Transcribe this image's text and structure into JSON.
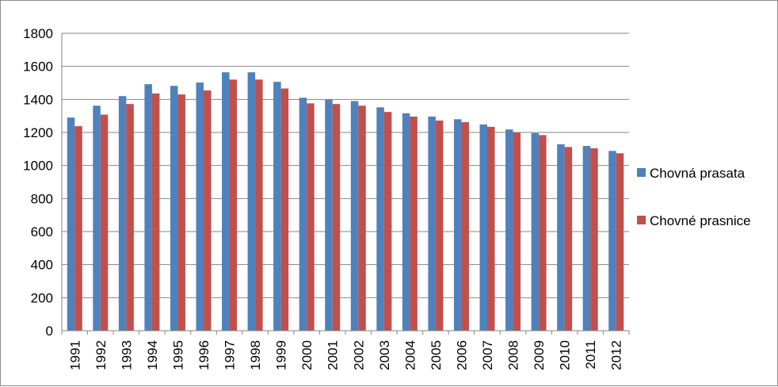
{
  "chart_data": {
    "type": "bar",
    "categories": [
      "1991",
      "1992",
      "1993",
      "1994",
      "1995",
      "1996",
      "1997",
      "1998",
      "1999",
      "2000",
      "2001",
      "2002",
      "2003",
      "2004",
      "2005",
      "2006",
      "2007",
      "2008",
      "2009",
      "2010",
      "2011",
      "2012"
    ],
    "series": [
      {
        "name": "Chovná prasata",
        "color": "#4f81bd",
        "values": [
          1290,
          1362,
          1420,
          1492,
          1482,
          1502,
          1564,
          1564,
          1506,
          1410,
          1400,
          1390,
          1352,
          1316,
          1296,
          1280,
          1248,
          1218,
          1196,
          1128,
          1118,
          1088
        ]
      },
      {
        "name": "Chovné prasnice",
        "color": "#c0504d",
        "values": [
          1238,
          1308,
          1372,
          1436,
          1430,
          1454,
          1520,
          1520,
          1466,
          1376,
          1372,
          1362,
          1324,
          1296,
          1272,
          1262,
          1234,
          1198,
          1184,
          1112,
          1104,
          1074
        ]
      }
    ],
    "title": "",
    "xlabel": "",
    "ylabel": "",
    "ylim": [
      0,
      1800
    ],
    "yticks": [
      "0",
      "200",
      "400",
      "600",
      "800",
      "1000",
      "1200",
      "1400",
      "1600",
      "1800"
    ],
    "grid": true,
    "legend_position": "right"
  }
}
